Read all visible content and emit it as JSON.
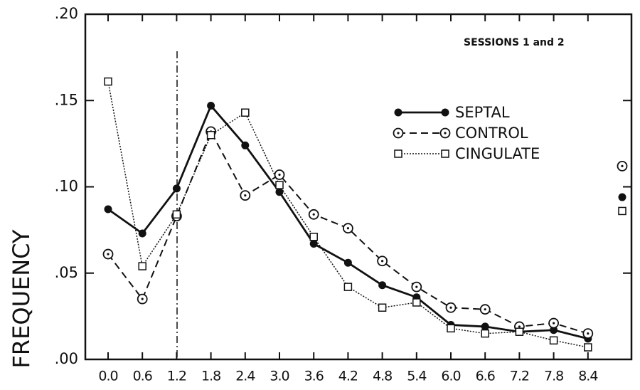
{
  "chart_data": {
    "type": "line",
    "annotation": "SESSIONS 1 and 2",
    "y_label": "FREQUENCY",
    "categories": [
      "0.0",
      "0.6",
      "1.2",
      "1.8",
      "2.4",
      "3.0",
      "3.6",
      "4.2",
      "4.8",
      "5.4",
      "6.0",
      "6.6",
      "7.2",
      "7.8",
      "8.4",
      null
    ],
    "series": [
      {
        "name": "SEPTAL",
        "color": "#111111",
        "values": [
          0.087,
          0.073,
          0.099,
          0.147,
          0.124,
          0.097,
          0.067,
          0.056,
          0.043,
          0.036,
          0.02,
          0.019,
          0.016,
          0.017,
          0.012,
          0.094
        ]
      },
      {
        "name": "CONTROL",
        "color": "#111111",
        "values": [
          0.061,
          0.035,
          0.083,
          0.132,
          0.095,
          0.107,
          0.084,
          0.076,
          0.057,
          0.042,
          0.03,
          0.029,
          0.019,
          0.021,
          0.015,
          0.112
        ]
      },
      {
        "name": "CINGULATE",
        "color": "#111111",
        "values": [
          0.161,
          0.054,
          0.084,
          0.13,
          0.143,
          0.101,
          0.071,
          0.042,
          0.03,
          0.033,
          0.018,
          0.015,
          0.016,
          0.011,
          0.007,
          0.086
        ]
      }
    ],
    "ylim": [
      0,
      0.2
    ],
    "yticks": [
      {
        "value": 0,
        "label": ".00"
      },
      {
        "value": 0.05,
        "label": ".05"
      },
      {
        "value": 0.1,
        "label": ".10"
      },
      {
        "value": 0.15,
        "label": ".15"
      },
      {
        "value": 0.2,
        "label": ".20"
      }
    ],
    "legend": "upper right",
    "grid": false
  }
}
